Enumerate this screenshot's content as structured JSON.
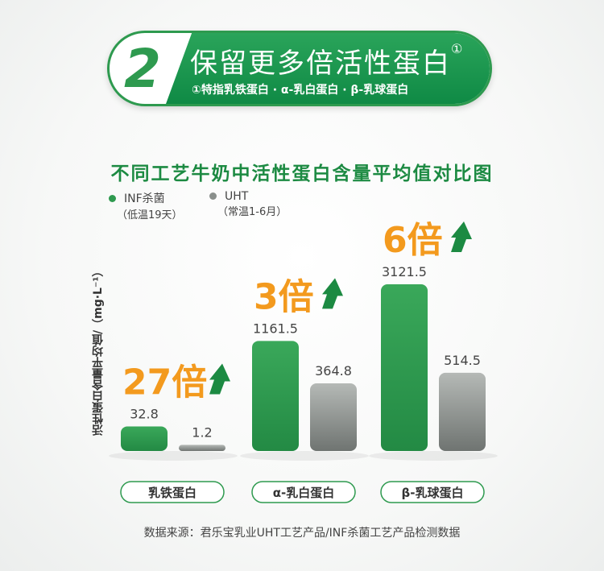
{
  "banner": {
    "number": "2",
    "title": "保留更多倍活性蛋白",
    "title_mark": "①",
    "note": "①特指乳铁蛋白 · α-乳白蛋白 · β-乳球蛋白"
  },
  "colors": {
    "inf": "#2e9a4f",
    "uht": "#8a8f8c",
    "multiplier": "#f39a1e",
    "arrow": "#1c8a42"
  },
  "chart_data": {
    "type": "bar",
    "title": "不同工艺牛奶中活性蛋白含量平均值对比图",
    "ylabel": "活性蛋白含量平均值/（mg·L⁻¹）",
    "categories": [
      "乳铁蛋白",
      "α-乳白蛋白",
      "β-乳球蛋白"
    ],
    "series": [
      {
        "name": "INF杀菌",
        "subname": "（低温19天）",
        "values": [
          32.8,
          1161.5,
          3121.5
        ],
        "labels": [
          "32.8",
          "1161.5",
          "3121.5"
        ]
      },
      {
        "name": "UHT",
        "subname": "（常温1-6月）",
        "values": [
          1.2,
          364.8,
          514.5
        ],
        "labels": [
          "1.2",
          "364.8",
          "514.5"
        ]
      }
    ],
    "multipliers": [
      "27倍",
      "3倍",
      "6倍"
    ],
    "legend": "top-left"
  },
  "footer": "数据来源：君乐宝乳业UHT工艺产品/INF杀菌工艺产品检测数据"
}
